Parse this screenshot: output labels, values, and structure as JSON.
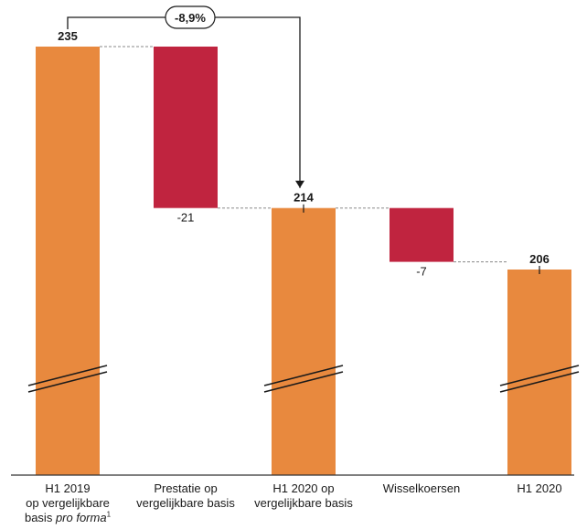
{
  "chart_data": {
    "type": "bar",
    "subtype": "waterfall",
    "title": "",
    "xlabel": "",
    "ylabel": "",
    "categories": [
      "H1 2019 op vergelijkbare basis pro forma1",
      "Prestatie op vergelijkbare basis",
      "H1 2020 op vergelijkbare basis",
      "Wisselkoersen",
      "H1 2020"
    ],
    "values": [
      235,
      -21,
      214,
      -7,
      206
    ],
    "value_labels": [
      "235",
      "-21",
      "214",
      "-7",
      "206"
    ],
    "bar_kinds": [
      "total",
      "delta",
      "total",
      "delta",
      "total"
    ],
    "axis_break": true,
    "grid": false,
    "legend": "none",
    "colors": {
      "total": "#E8893E",
      "negative": "#C0243F",
      "axis": "#333333",
      "connector": "#888888"
    },
    "annotation": {
      "text": "-8,9%",
      "from_index": 0,
      "to_index": 2
    }
  },
  "labels": {
    "cat0": {
      "line1": "H1 2019",
      "line2": "op vergelijkbare",
      "line3a": "basis ",
      "line3b": "pro forma",
      "sup": "1"
    },
    "cat1": {
      "line1": "Prestatie op",
      "line2": "vergelijkbare basis"
    },
    "cat2": {
      "line1": "H1 2020 op",
      "line2": "vergelijkbare basis"
    },
    "cat3": {
      "line1": "Wisselkoersen"
    },
    "cat4": {
      "line1": "H1 2020"
    }
  }
}
